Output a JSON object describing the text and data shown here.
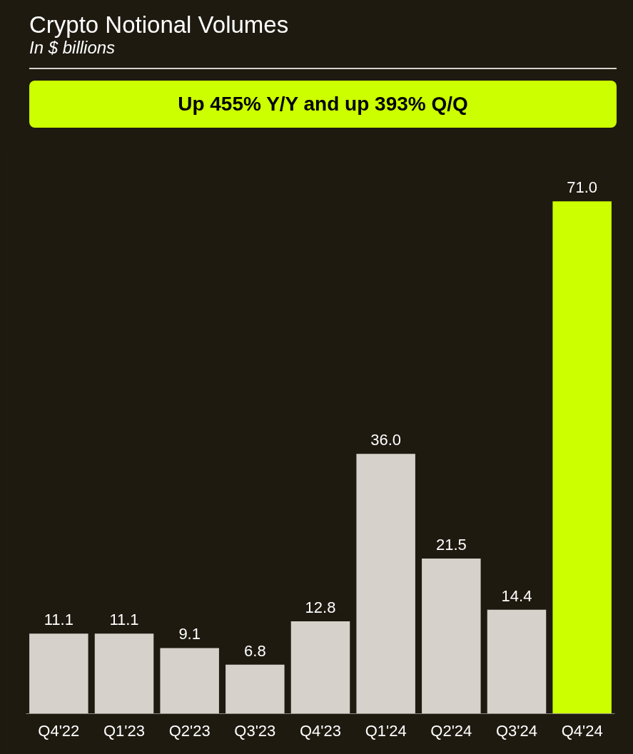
{
  "chart_data": {
    "type": "bar",
    "title": "Crypto Notional Volumes",
    "subtitle": "In $ billions",
    "annotations": [
      "Up 455% Y/Y and up 393% Q/Q"
    ],
    "categories": [
      "Q4'22",
      "Q1'23",
      "Q2'23",
      "Q3'23",
      "Q4'23",
      "Q1'24",
      "Q2'24",
      "Q3'24",
      "Q4'24"
    ],
    "values": [
      11.1,
      11.1,
      9.1,
      6.8,
      12.8,
      36.0,
      21.5,
      14.4,
      71.0
    ],
    "colors": [
      "#d6d1cb",
      "#d6d1cb",
      "#d6d1cb",
      "#d6d1cb",
      "#d6d1cb",
      "#d6d1cb",
      "#d6d1cb",
      "#d6d1cb",
      "#ccff00"
    ],
    "value_labels": [
      "11.1",
      "11.1",
      "9.1",
      "6.8",
      "12.8",
      "36.0",
      "21.5",
      "14.4",
      "71.0"
    ],
    "grid": false
  }
}
